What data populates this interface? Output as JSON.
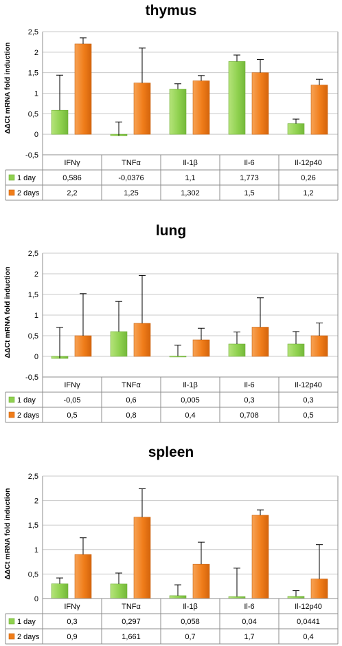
{
  "chart_data": [
    {
      "type": "bar",
      "title": "thymus",
      "ylabel": "ΔΔCt mRNA fold induction",
      "ylim": [
        -0.5,
        2.5
      ],
      "yticks": [
        "2,5",
        "2",
        "1,5",
        "1",
        "0,5",
        "0",
        "-0,5"
      ],
      "ytick_values": [
        2.5,
        2,
        1.5,
        1,
        0.5,
        0,
        -0.5
      ],
      "categories": [
        "IFNγ",
        "TNFα",
        "Il-1β",
        "Il-6",
        "Il-12p40"
      ],
      "grid": true,
      "series": [
        {
          "name": "1 day",
          "color": "#8fd14f",
          "values": [
            0.586,
            -0.0376,
            1.1,
            1.773,
            0.26
          ],
          "labels": [
            "0,586",
            "-0,0376",
            "1,1",
            "1,773",
            "0,26"
          ],
          "error_upper": [
            1.44,
            0.3,
            1.23,
            1.93,
            0.37
          ]
        },
        {
          "name": "2 days",
          "color": "#f07d1a",
          "values": [
            2.2,
            1.25,
            1.302,
            1.5,
            1.2
          ],
          "labels": [
            "2,2",
            "1,25",
            "1,302",
            "1,5",
            "1,2"
          ],
          "error_upper": [
            2.35,
            2.1,
            1.43,
            1.82,
            1.34
          ]
        }
      ]
    },
    {
      "type": "bar",
      "title": "lung",
      "ylabel": "ΔΔCt mRNA fold induction",
      "ylim": [
        -0.5,
        2.5
      ],
      "yticks": [
        "2,5",
        "2",
        "1,5",
        "1",
        "0,5",
        "0",
        "-0,5"
      ],
      "ytick_values": [
        2.5,
        2,
        1.5,
        1,
        0.5,
        0,
        -0.5
      ],
      "categories": [
        "IFNγ",
        "TNFα",
        "Il-1β",
        "Il-6",
        "Il-12p40"
      ],
      "grid": true,
      "series": [
        {
          "name": "1 day",
          "color": "#8fd14f",
          "values": [
            -0.05,
            0.6,
            0.005,
            0.3,
            0.3
          ],
          "labels": [
            "-0,05",
            "0,6",
            "0,005",
            "0,3",
            "0,3"
          ],
          "error_upper": [
            0.7,
            1.33,
            0.27,
            0.59,
            0.6
          ]
        },
        {
          "name": "2 days",
          "color": "#f07d1a",
          "values": [
            0.5,
            0.8,
            0.4,
            0.708,
            0.5
          ],
          "labels": [
            "0,5",
            "0,8",
            "0,4",
            "0,708",
            "0,5"
          ],
          "error_upper": [
            1.52,
            1.96,
            0.68,
            1.42,
            0.81
          ]
        }
      ]
    },
    {
      "type": "bar",
      "title": "spleen",
      "ylabel": "ΔΔCt mRNA fold induction",
      "ylim": [
        0,
        2.5
      ],
      "yticks": [
        "2,5",
        "2",
        "1,5",
        "1",
        "0,5",
        "0"
      ],
      "ytick_values": [
        2.5,
        2,
        1.5,
        1,
        0.5,
        0
      ],
      "categories": [
        "IFNγ",
        "TNFα",
        "Il-1β",
        "Il-6",
        "Il-12p40"
      ],
      "grid": true,
      "series": [
        {
          "name": "1 day",
          "color": "#8fd14f",
          "values": [
            0.3,
            0.297,
            0.058,
            0.04,
            0.0441
          ],
          "labels": [
            "0,3",
            "0,297",
            "0,058",
            "0,04",
            "0,0441"
          ],
          "error_upper": [
            0.42,
            0.52,
            0.28,
            0.62,
            0.16
          ]
        },
        {
          "name": "2 days",
          "color": "#f07d1a",
          "values": [
            0.9,
            1.661,
            0.7,
            1.7,
            0.4
          ],
          "labels": [
            "0,9",
            "1,661",
            "0,7",
            "1,7",
            "0,4"
          ],
          "error_upper": [
            1.24,
            2.24,
            1.15,
            1.81,
            1.1
          ]
        }
      ]
    }
  ]
}
